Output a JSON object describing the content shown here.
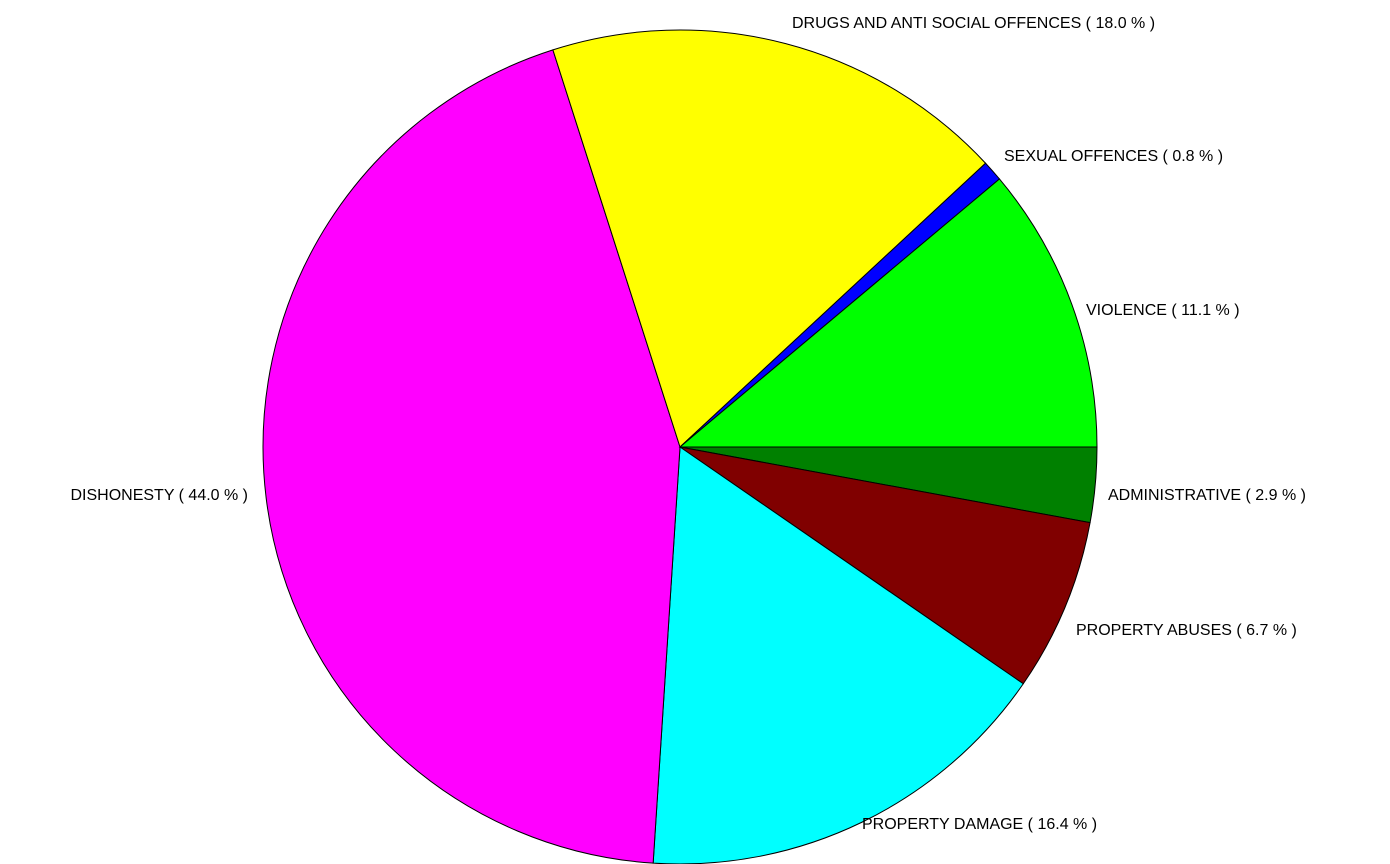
{
  "chart_data": {
    "type": "pie",
    "title": "",
    "slices": [
      {
        "label": "ADMINISTRATIVE",
        "value": 2.9,
        "value_text": "( 2.9 % )",
        "color": "#008000"
      },
      {
        "label": "PROPERTY ABUSES",
        "value": 6.7,
        "value_text": "( 6.7 % )",
        "color": "#800000"
      },
      {
        "label": "PROPERTY DAMAGE",
        "value": 16.4,
        "value_text": "( 16.4 % )",
        "color": "#00ffff"
      },
      {
        "label": "DISHONESTY",
        "value": 44.0,
        "value_text": "( 44.0 % )",
        "color": "#ff00ff"
      },
      {
        "label": "DRUGS AND ANTI SOCIAL OFFENCES",
        "value": 18.0,
        "value_text": "( 18.0 % )",
        "color": "#ffff00"
      },
      {
        "label": "SEXUAL OFFENCES",
        "value": 0.8,
        "value_text": "( 0.8 % )",
        "color": "#0000ff"
      },
      {
        "label": "VIOLENCE",
        "value": 11.1,
        "value_text": "( 11.1 % )",
        "color": "#00ff00"
      }
    ],
    "start_direction": "right (3 o'clock)",
    "direction": "clockwise",
    "legend": "none"
  }
}
